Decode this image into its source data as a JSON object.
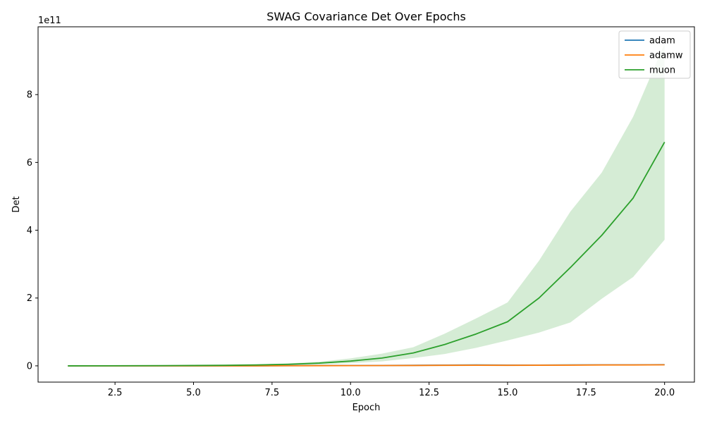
{
  "chart_data": {
    "type": "line",
    "title": "SWAG Covariance Det Over Epochs",
    "xlabel": "Epoch",
    "ylabel": "Det",
    "y_offset_label": "1e11",
    "y_scale_factor": 100000000000,
    "xlim": [
      0.05,
      20.95
    ],
    "ylim": [
      -48000000000,
      1000000000000
    ],
    "x_ticks": [
      2.5,
      5.0,
      7.5,
      10.0,
      12.5,
      15.0,
      17.5,
      20.0
    ],
    "x_tick_labels": [
      "2.5",
      "5.0",
      "7.5",
      "10.0",
      "12.5",
      "15.0",
      "17.5",
      "20.0"
    ],
    "y_ticks": [
      0,
      200000000000,
      400000000000,
      600000000000,
      800000000000
    ],
    "y_tick_labels": [
      "0",
      "2",
      "4",
      "6",
      "8"
    ],
    "grid": false,
    "legend_position": "top-right",
    "x": [
      1,
      2,
      3,
      4,
      5,
      6,
      7,
      8,
      9,
      10,
      11,
      12,
      13,
      14,
      15,
      16,
      17,
      18,
      19,
      20
    ],
    "series": [
      {
        "name": "adam",
        "color": "#1f77b4",
        "values": [
          0,
          0,
          0,
          0,
          0,
          0,
          0,
          500000000,
          700000000,
          800000000,
          1000000000,
          1500000000,
          2000000000,
          2500000000,
          2000000000,
          2000000000,
          2500000000,
          3000000000,
          3000000000,
          3500000000
        ]
      },
      {
        "name": "adamw",
        "color": "#ff7f0e",
        "values": [
          0,
          0,
          0,
          0,
          0,
          0,
          0,
          300000000,
          500000000,
          600000000,
          800000000,
          1000000000,
          1500000000,
          1800000000,
          1500000000,
          1800000000,
          2000000000,
          2500000000,
          2500000000,
          3000000000
        ]
      },
      {
        "name": "muon",
        "color": "#2ca02c",
        "band_color": "#2ca02c",
        "values": [
          0,
          100000000,
          300000000,
          600000000,
          1000000000,
          1500000000,
          2500000000,
          4500000000,
          8000000000,
          14000000000,
          23000000000,
          38000000000,
          63000000000,
          94000000000,
          130000000000,
          200000000000,
          290000000000,
          385000000000,
          495000000000,
          660000000000
        ],
        "lower": [
          0,
          50000000,
          150000000,
          300000000,
          500000000,
          800000000,
          1300000000,
          2500000000,
          4500000000,
          8000000000,
          13000000000,
          23000000000,
          35000000000,
          53000000000,
          75000000000,
          98000000000,
          128000000000,
          198000000000,
          262000000000,
          372000000000
        ],
        "upper": [
          0,
          200000000,
          500000000,
          1000000000,
          1600000000,
          2500000000,
          4000000000,
          7000000000,
          12000000000,
          22000000000,
          36000000000,
          55000000000,
          95000000000,
          140000000000,
          187000000000,
          310000000000,
          455000000000,
          570000000000,
          735000000000,
          950000000000
        ]
      }
    ]
  }
}
